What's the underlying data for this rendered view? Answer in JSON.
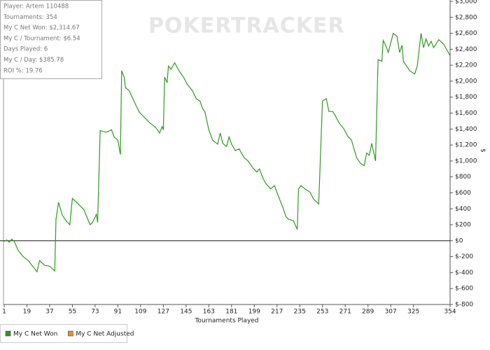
{
  "chart_data": {
    "type": "line",
    "watermark": "POKERTRACKER",
    "stats": [
      "Player: Artem 110488",
      "Tournaments: 354",
      "My C Net Won: $2,314.67",
      "My C / Tournament: $6.54",
      "Days Played: 6",
      "My C / Day: $385.78",
      "ROI %: 19.76"
    ],
    "x_label": "Tournaments Played",
    "y_label": "$",
    "xlim": [
      1,
      354
    ],
    "xticks": [
      1,
      19,
      37,
      55,
      73,
      91,
      109,
      127,
      145,
      163,
      181,
      199,
      217,
      235,
      253,
      271,
      289,
      307,
      325,
      354
    ],
    "ylim": [
      -800,
      3000
    ],
    "yticks": [
      {
        "value": 3000,
        "label": "$3,000"
      },
      {
        "value": 2800,
        "label": "$2,800"
      },
      {
        "value": 2600,
        "label": "$2,600"
      },
      {
        "value": 2400,
        "label": "$2,400"
      },
      {
        "value": 2200,
        "label": "$2,200"
      },
      {
        "value": 2000,
        "label": "$2,000"
      },
      {
        "value": 1800,
        "label": "$1,800"
      },
      {
        "value": 1600,
        "label": "$1,600"
      },
      {
        "value": 1400,
        "label": "$1,400"
      },
      {
        "value": 1200,
        "label": "$1,200"
      },
      {
        "value": 1000,
        "label": "$1,000"
      },
      {
        "value": 800,
        "label": "$800"
      },
      {
        "value": 600,
        "label": "$600"
      },
      {
        "value": 400,
        "label": "$400"
      },
      {
        "value": 200,
        "label": "$200"
      },
      {
        "value": 0,
        "label": "$0"
      },
      {
        "value": -200,
        "label": "$-200"
      },
      {
        "value": -400,
        "label": "$-400"
      },
      {
        "value": -600,
        "label": "$-600"
      },
      {
        "value": -800,
        "label": "$-800"
      }
    ],
    "zero_line": true,
    "x": [
      1,
      3,
      5,
      7,
      9,
      12,
      16,
      20,
      24,
      27,
      29,
      31,
      33,
      37,
      39,
      41,
      42,
      44,
      47,
      50,
      53,
      55,
      59,
      64,
      69,
      71,
      74,
      75,
      77,
      82,
      86,
      88,
      91,
      93,
      94,
      96,
      97,
      100,
      104,
      108,
      113,
      116,
      121,
      124,
      126,
      127,
      128,
      130,
      131,
      133,
      136,
      139,
      143,
      146,
      150,
      153,
      156,
      158,
      160,
      163,
      166,
      170,
      172,
      174,
      177,
      179,
      181,
      184,
      187,
      191,
      194,
      198,
      201,
      203,
      206,
      208,
      212,
      215,
      218,
      220,
      222,
      224,
      226,
      230,
      233,
      234,
      236,
      239,
      243,
      246,
      250,
      253,
      256,
      258,
      261,
      263,
      266,
      270,
      273,
      276,
      280,
      283,
      286,
      288,
      290,
      292,
      295,
      297,
      300,
      301,
      303,
      305,
      309,
      312,
      314,
      316,
      317,
      322,
      326,
      328,
      331,
      333,
      335,
      337,
      339,
      341,
      345,
      349,
      354
    ],
    "series": [
      {
        "name": "My C Net Won",
        "color": "#2e9a1e",
        "values": [
          -10,
          10,
          -20,
          20,
          -10,
          -120,
          -200,
          -250,
          -330,
          -390,
          -250,
          -280,
          -310,
          -320,
          -350,
          -380,
          270,
          480,
          320,
          250,
          200,
          530,
          470,
          390,
          200,
          230,
          330,
          230,
          1380,
          1360,
          1390,
          1300,
          1260,
          1080,
          2130,
          2050,
          1920,
          1880,
          1740,
          1610,
          1530,
          1480,
          1420,
          1350,
          1430,
          1390,
          2050,
          1980,
          2190,
          2150,
          2230,
          2140,
          2050,
          1960,
          1880,
          1780,
          1750,
          1660,
          1610,
          1390,
          1260,
          1210,
          1350,
          1220,
          1180,
          1300,
          1210,
          1130,
          1150,
          1040,
          1000,
          910,
          860,
          900,
          780,
          720,
          650,
          690,
          560,
          480,
          400,
          300,
          270,
          250,
          140,
          650,
          690,
          650,
          610,
          520,
          460,
          1750,
          1780,
          1620,
          1620,
          1570,
          1480,
          1400,
          1310,
          1260,
          1040,
          970,
          940,
          1100,
          1070,
          1220,
          1000,
          2270,
          2250,
          2510,
          2450,
          2360,
          2600,
          2560,
          2360,
          2450,
          2250,
          2130,
          2090,
          2190,
          2600,
          2420,
          2530,
          2440,
          2500,
          2420,
          2520,
          2460,
          2320
        ]
      },
      {
        "name": "My C Net Adjusted",
        "color": "#f08a1c"
      }
    ]
  }
}
